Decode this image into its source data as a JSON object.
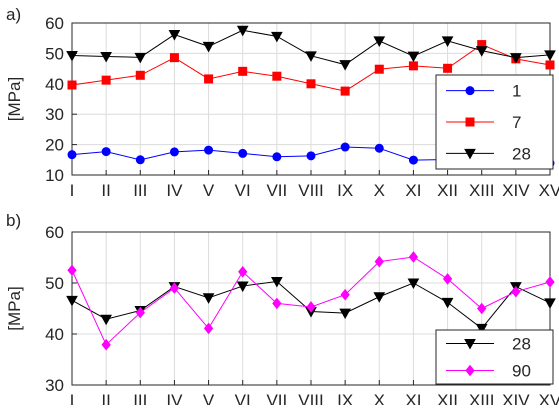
{
  "chart_data": [
    {
      "type": "line",
      "panel_label": "a)",
      "ylabel": "[MPa]",
      "ylim": [
        10,
        60
      ],
      "yticks": [
        10,
        20,
        30,
        40,
        50,
        60
      ],
      "grid": true,
      "legend_position": "right",
      "categories": [
        "I",
        "II",
        "III",
        "IV",
        "V",
        "VI",
        "VII",
        "VIII",
        "IX",
        "X",
        "XI",
        "XII",
        "XIII",
        "XIV",
        "XV"
      ],
      "series": [
        {
          "name": "1",
          "color": "#0000ff",
          "marker": "circle",
          "values": [
            16.7,
            17.7,
            15.0,
            17.6,
            18.2,
            17.1,
            16.0,
            16.3,
            19.2,
            18.8,
            14.9,
            15.1,
            15.6,
            13.6,
            13.9
          ]
        },
        {
          "name": "7",
          "color": "#ff0000",
          "marker": "square",
          "values": [
            39.6,
            41.2,
            42.8,
            48.6,
            41.6,
            44.1,
            42.5,
            40.0,
            37.6,
            44.8,
            45.9,
            45.1,
            52.9,
            48.2,
            46.2
          ]
        },
        {
          "name": "28",
          "color": "#000000",
          "marker": "triangle-down",
          "values": [
            49.3,
            49.0,
            48.7,
            56.2,
            52.3,
            57.6,
            55.6,
            49.2,
            46.3,
            54.1,
            49.1,
            54.1,
            50.9,
            48.6,
            49.5
          ]
        }
      ]
    },
    {
      "type": "line",
      "panel_label": "b)",
      "ylabel": "[MPa]",
      "ylim": [
        30,
        60
      ],
      "yticks": [
        30,
        40,
        50,
        60
      ],
      "grid": true,
      "legend_position": "bottom-right",
      "categories": [
        "I",
        "II",
        "III",
        "IV",
        "V",
        "VI",
        "VII",
        "VIII",
        "IX",
        "X",
        "XI",
        "XII",
        "XIII",
        "XIV",
        "XV"
      ],
      "series": [
        {
          "name": "28",
          "color": "#000000",
          "marker": "triangle-down",
          "values": [
            46.6,
            42.9,
            44.6,
            49.3,
            47.1,
            49.4,
            50.3,
            44.4,
            44.1,
            47.3,
            50.0,
            46.2,
            41.1,
            49.3,
            46.1
          ]
        },
        {
          "name": "90",
          "color": "#ff00ff",
          "marker": "diamond",
          "values": [
            52.5,
            37.9,
            44.2,
            49.0,
            41.1,
            52.2,
            46.0,
            45.3,
            47.7,
            54.2,
            55.1,
            50.8,
            45.0,
            48.3,
            50.2
          ]
        }
      ]
    }
  ]
}
